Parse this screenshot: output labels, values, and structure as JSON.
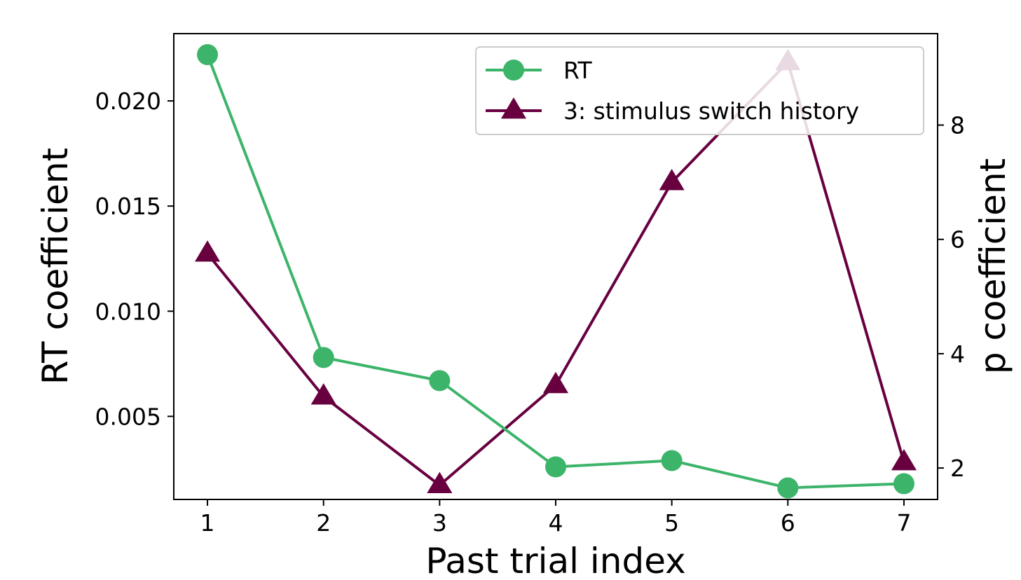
{
  "chart_data": {
    "type": "line",
    "title": "",
    "xlabel": "Past trial index",
    "ylabel_left": "RT coefficient",
    "ylabel_right": "p coefficient",
    "x": [
      1,
      2,
      3,
      4,
      5,
      6,
      7
    ],
    "xticks": [
      "1",
      "2",
      "3",
      "4",
      "5",
      "6",
      "7"
    ],
    "xlim": [
      0.71,
      7.29
    ],
    "left_axis": {
      "ylim": [
        0.00105,
        0.0232
      ],
      "ticks": [
        0.005,
        0.01,
        0.015,
        0.02
      ],
      "tick_labels": [
        "0.005",
        "0.010",
        "0.015",
        "0.020"
      ]
    },
    "right_axis": {
      "ylim": [
        1.45,
        9.6
      ],
      "ticks": [
        2,
        4,
        6,
        8
      ],
      "tick_labels": [
        "2",
        "4",
        "6",
        "8"
      ]
    },
    "series": [
      {
        "name": "RT",
        "axis": "left",
        "marker": "circle",
        "color": "#3cb46a",
        "values": [
          0.0222,
          0.0078,
          0.0067,
          0.0026,
          0.0029,
          0.0016,
          0.0018
        ]
      },
      {
        "name": "3: stimulus switch history",
        "axis": "right",
        "marker": "triangle",
        "color": "#680040",
        "values": [
          5.75,
          3.25,
          1.7,
          3.45,
          7.0,
          9.1,
          2.1
        ]
      }
    ],
    "grid": false,
    "legend_position": "top-right"
  }
}
